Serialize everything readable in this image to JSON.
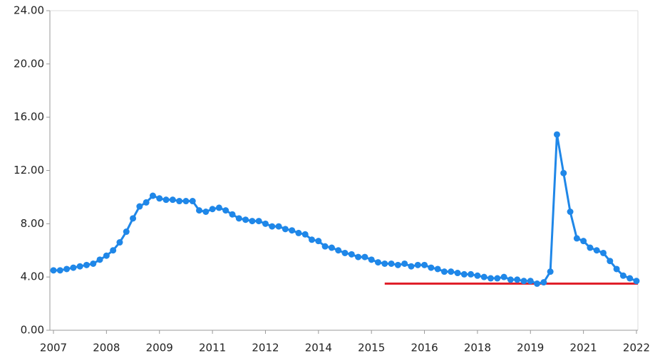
{
  "chart_data": {
    "type": "line",
    "categories": [
      "2007",
      null,
      null,
      null,
      null,
      null,
      null,
      null,
      "2008",
      null,
      null,
      null,
      null,
      null,
      null,
      null,
      "2009",
      null,
      null,
      null,
      null,
      null,
      null,
      null,
      "2011",
      null,
      null,
      null,
      null,
      null,
      null,
      null,
      "2012",
      null,
      null,
      null,
      null,
      null,
      null,
      null,
      "2014",
      null,
      null,
      null,
      null,
      null,
      null,
      null,
      "2015",
      null,
      null,
      null,
      null,
      null,
      null,
      null,
      "2016",
      null,
      null,
      null,
      null,
      null,
      null,
      null,
      "2018",
      null,
      null,
      null,
      null,
      null,
      null,
      null,
      "2019",
      null,
      null,
      null,
      null,
      null,
      null,
      null,
      "2021",
      null,
      null,
      null,
      null,
      null,
      null,
      null,
      "2022"
    ],
    "series": [
      {
        "color": "#1f87e8",
        "values": [
          4.5,
          4.5,
          4.6,
          4.7,
          4.8,
          4.9,
          5.0,
          5.3,
          5.6,
          6.0,
          6.6,
          7.4,
          8.4,
          9.3,
          9.6,
          10.1,
          9.9,
          9.8,
          9.8,
          9.7,
          9.7,
          9.7,
          9.0,
          8.9,
          9.1,
          9.2,
          9.0,
          8.7,
          8.4,
          8.3,
          8.2,
          8.2,
          8.0,
          7.8,
          7.8,
          7.6,
          7.5,
          7.3,
          7.2,
          6.8,
          6.7,
          6.3,
          6.2,
          6.0,
          5.8,
          5.7,
          5.5,
          5.5,
          5.3,
          5.1,
          5.0,
          5.0,
          4.9,
          5.0,
          4.8,
          4.9,
          4.9,
          4.7,
          4.6,
          4.4,
          4.4,
          4.3,
          4.2,
          4.2,
          4.1,
          4.0,
          3.9,
          3.9,
          4.0,
          3.8,
          3.8,
          3.7,
          3.7,
          3.5,
          3.6,
          4.4,
          14.7,
          11.8,
          8.9,
          6.9,
          6.7,
          6.2,
          6.0,
          5.8,
          5.2,
          4.6,
          4.1,
          3.9,
          3.7
        ]
      }
    ],
    "hline": {
      "y": 3.5,
      "x_start": 50,
      "color": "#e0202a"
    },
    "ylim": [
      0,
      24
    ],
    "yticks": [
      {
        "value": 0,
        "label": "0.00"
      },
      {
        "value": 4,
        "label": "4.00"
      },
      {
        "value": 8,
        "label": "8.00"
      },
      {
        "value": 12,
        "label": "12.00"
      },
      {
        "value": 16,
        "label": "16.00"
      },
      {
        "value": 20,
        "label": "20.00"
      },
      {
        "value": 24,
        "label": "24.00"
      }
    ],
    "grid": false
  }
}
